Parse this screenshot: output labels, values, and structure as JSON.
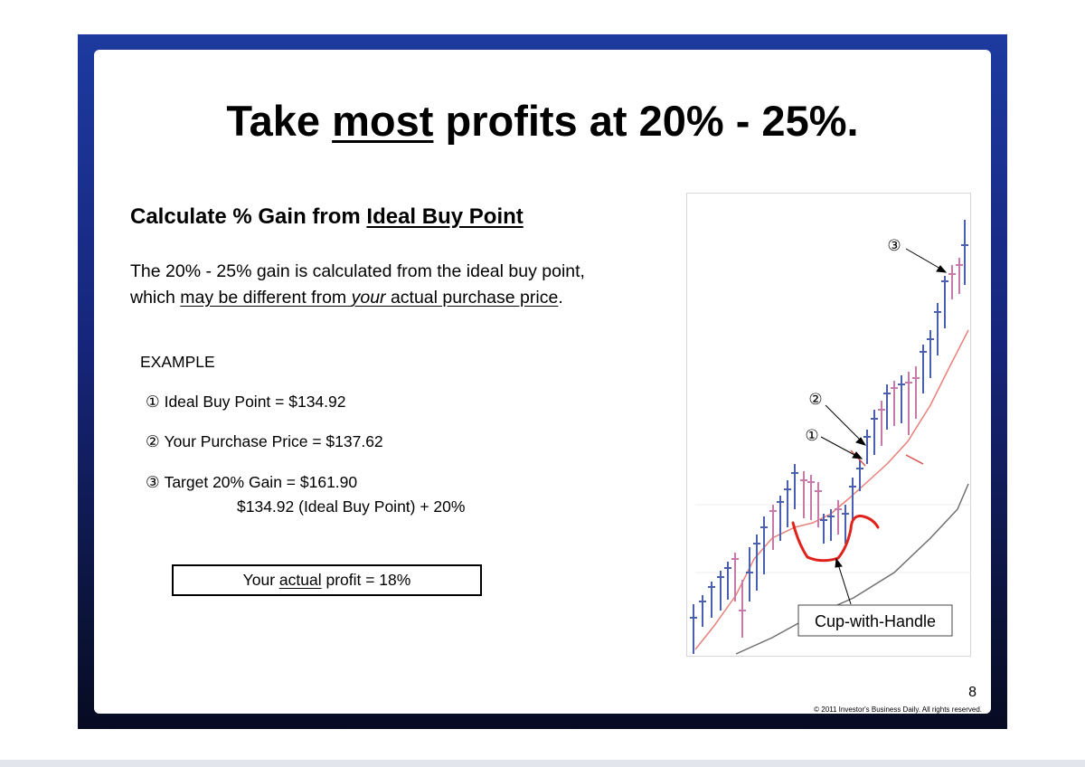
{
  "slide": {
    "title_pre": "Take ",
    "title_emph": "most",
    "title_post": " profits at 20% - 25%.",
    "subheading_pre": "Calculate % Gain from ",
    "subheading_emph": "Ideal Buy Point",
    "paragraph_line1": "The 20% - 25% gain is calculated from the ideal buy point,",
    "paragraph_line2_pre": "which ",
    "paragraph_line2_u1": "may be different from ",
    "paragraph_line2_u_italic": "your",
    "paragraph_line2_u2": " actual purchase price",
    "paragraph_line2_post": ".",
    "example_label": "EXAMPLE",
    "example_items": [
      {
        "marker": "①",
        "text": "Ideal Buy Point = $134.92"
      },
      {
        "marker": "②",
        "text": "Your Purchase Price = $137.62"
      },
      {
        "marker": "③",
        "text": "Target 20% Gain = $161.90"
      }
    ],
    "example_formula": "$134.92 (Ideal Buy Point) + 20%",
    "profit_pre": "Your ",
    "profit_emph": "actual",
    "profit_post": " profit = 18%",
    "chart_callout": "Cup-with-Handle",
    "chart_markers": [
      "①",
      "②",
      "③"
    ],
    "page_number": "8",
    "copyright": "© 2011 Investor's Business Daily. All rights reserved."
  },
  "colors": {
    "frame": "#17297f",
    "up_bar": "#4a5fb0",
    "down_bar": "#c77aa8",
    "ma_short": "#e8807a",
    "ma_long": "#6e6e6e",
    "cup_sketch": "#e0221b"
  }
}
